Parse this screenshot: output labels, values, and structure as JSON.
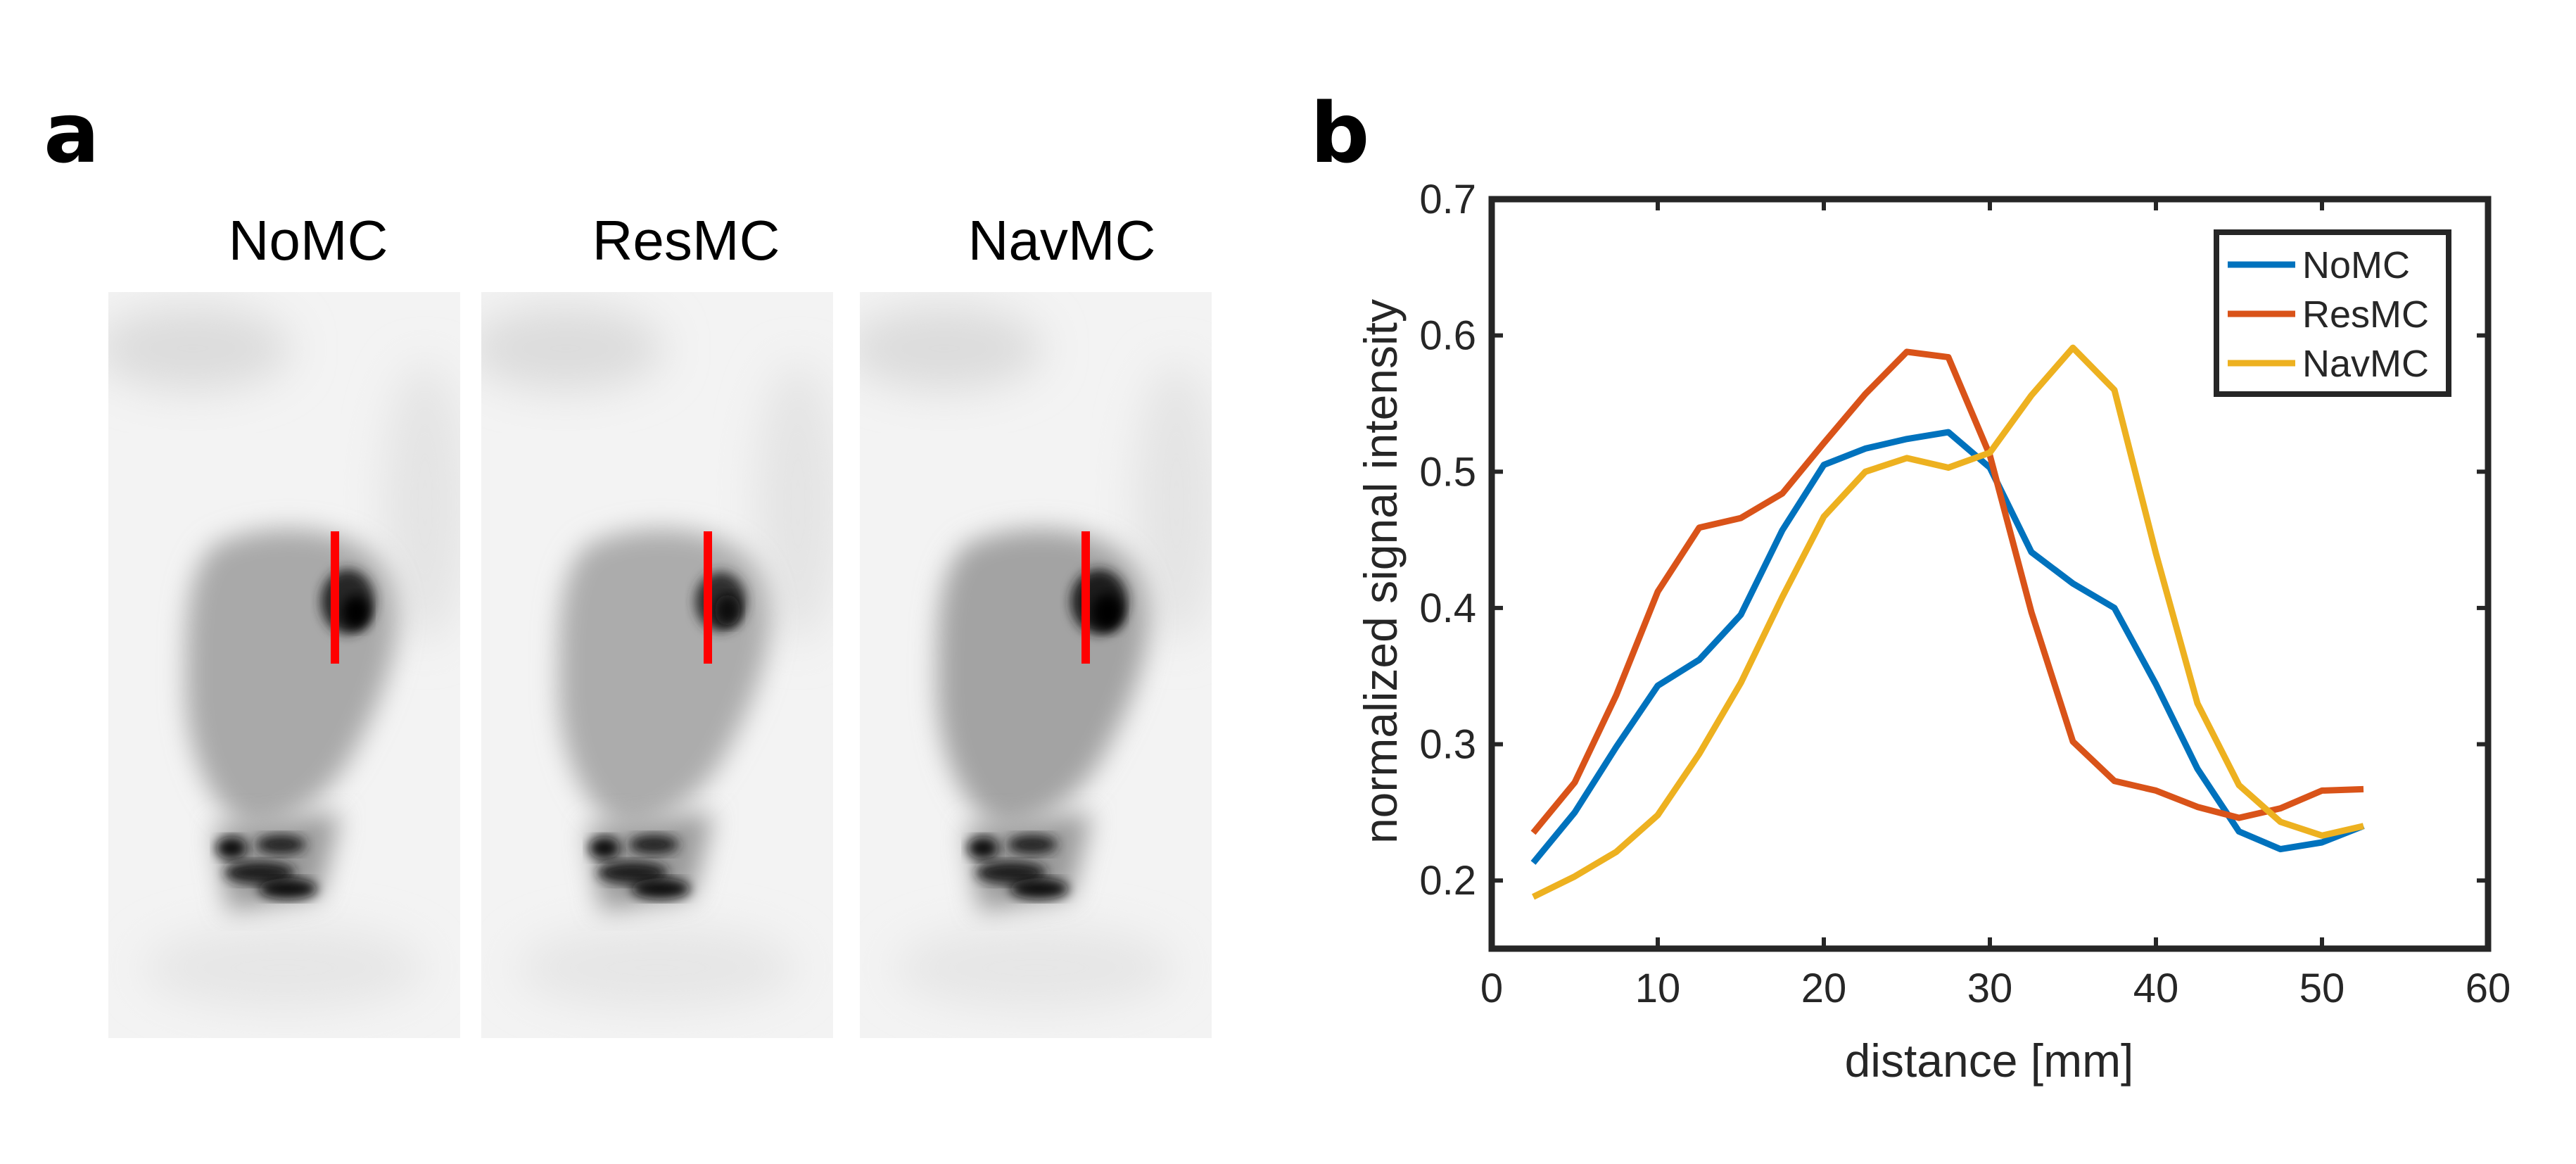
{
  "figure": {
    "panel_a_label": "a",
    "panel_b_label": "b",
    "images": [
      {
        "title": "NoMC",
        "color_line": "#ff0000"
      },
      {
        "title": "ResMC",
        "color_line": "#ff0000"
      },
      {
        "title": "NavMC",
        "color_line": "#ff0000"
      }
    ]
  },
  "chart_data": {
    "type": "line",
    "xlabel": "distance [mm]",
    "ylabel": "normalized signal intensity",
    "xlim": [
      0,
      60
    ],
    "ylim": [
      0.15,
      0.7
    ],
    "xticks": [
      0,
      10,
      20,
      30,
      40,
      50,
      60
    ],
    "yticks": [
      0.2,
      0.3,
      0.4,
      0.5,
      0.6,
      0.7
    ],
    "legend_position": "top-right",
    "x": [
      2.5,
      5,
      7.5,
      10,
      12.5,
      15,
      17.5,
      20,
      22.5,
      25,
      27.5,
      30,
      32.5,
      35,
      37.5,
      40,
      42.5,
      45,
      47.5,
      50,
      52.5
    ],
    "series": [
      {
        "name": "NoMC",
        "color": "#0072BD",
        "values": [
          0.213,
          0.25,
          0.298,
          0.343,
          0.362,
          0.395,
          0.457,
          0.505,
          0.517,
          0.524,
          0.529,
          0.503,
          0.441,
          0.418,
          0.4,
          0.344,
          0.282,
          0.236,
          0.223,
          0.228,
          0.24
        ]
      },
      {
        "name": "ResMC",
        "color": "#D95319",
        "values": [
          0.235,
          0.272,
          0.336,
          0.412,
          0.459,
          0.466,
          0.484,
          0.521,
          0.557,
          0.588,
          0.584,
          0.512,
          0.397,
          0.302,
          0.273,
          0.266,
          0.254,
          0.246,
          0.253,
          0.266,
          0.267
        ]
      },
      {
        "name": "NavMC",
        "color": "#EDB120",
        "values": [
          0.188,
          0.203,
          0.221,
          0.248,
          0.293,
          0.345,
          0.408,
          0.467,
          0.5,
          0.51,
          0.503,
          0.514,
          0.556,
          0.591,
          0.56,
          0.44,
          0.33,
          0.27,
          0.243,
          0.233,
          0.24
        ]
      }
    ]
  }
}
